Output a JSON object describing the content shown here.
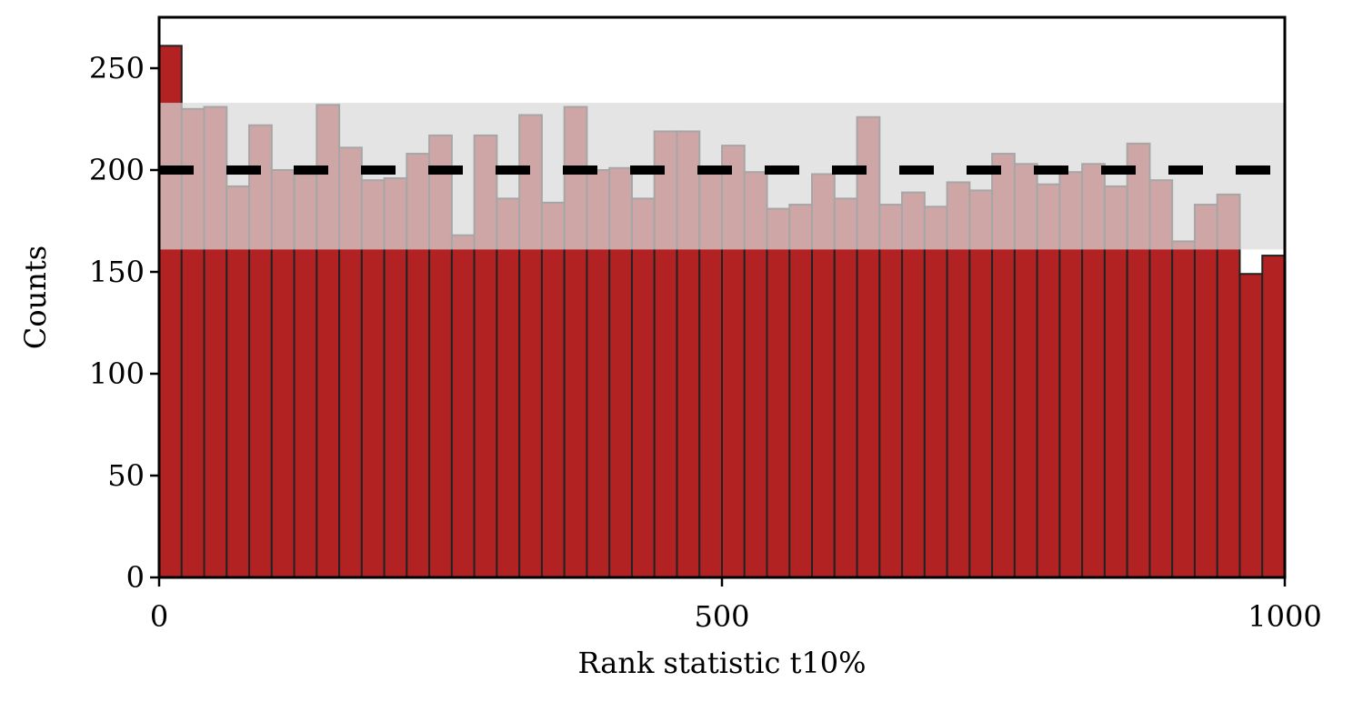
{
  "chart_data": {
    "type": "bar",
    "xlabel": "Rank statistic t10%",
    "ylabel": "Counts",
    "xlim": [
      0,
      1000
    ],
    "ylim": [
      0,
      275
    ],
    "bin_width": 20,
    "bin_starts": [
      0,
      20,
      40,
      60,
      80,
      100,
      120,
      140,
      160,
      180,
      200,
      220,
      240,
      260,
      280,
      300,
      320,
      340,
      360,
      380,
      400,
      420,
      440,
      460,
      480,
      500,
      520,
      540,
      560,
      580,
      600,
      620,
      640,
      660,
      680,
      700,
      720,
      740,
      760,
      780,
      800,
      820,
      840,
      860,
      880,
      900,
      920,
      940,
      960,
      980
    ],
    "values": [
      261,
      230,
      231,
      192,
      222,
      200,
      198,
      232,
      211,
      195,
      196,
      208,
      217,
      168,
      217,
      186,
      227,
      184,
      231,
      200,
      201,
      186,
      219,
      219,
      199,
      212,
      199,
      181,
      183,
      198,
      186,
      226,
      183,
      189,
      182,
      194,
      190,
      208,
      203,
      193,
      199,
      203,
      192,
      213,
      195,
      165,
      183,
      188,
      149,
      158
    ],
    "expected_count": 200,
    "expected_band": [
      161,
      233
    ],
    "xticks": [
      0,
      500,
      1000
    ],
    "xtick_labels": [
      "0",
      "500",
      "1000"
    ],
    "yticks": [
      0,
      50,
      100,
      150,
      200,
      250
    ],
    "ytick_labels": [
      "0",
      "50",
      "100",
      "150",
      "200",
      "250"
    ],
    "grid": false,
    "colors": {
      "bar_fill": "#b22222",
      "bar_edge": "#222222",
      "band": "#d9d9d9",
      "expected_line": "#000000"
    }
  }
}
